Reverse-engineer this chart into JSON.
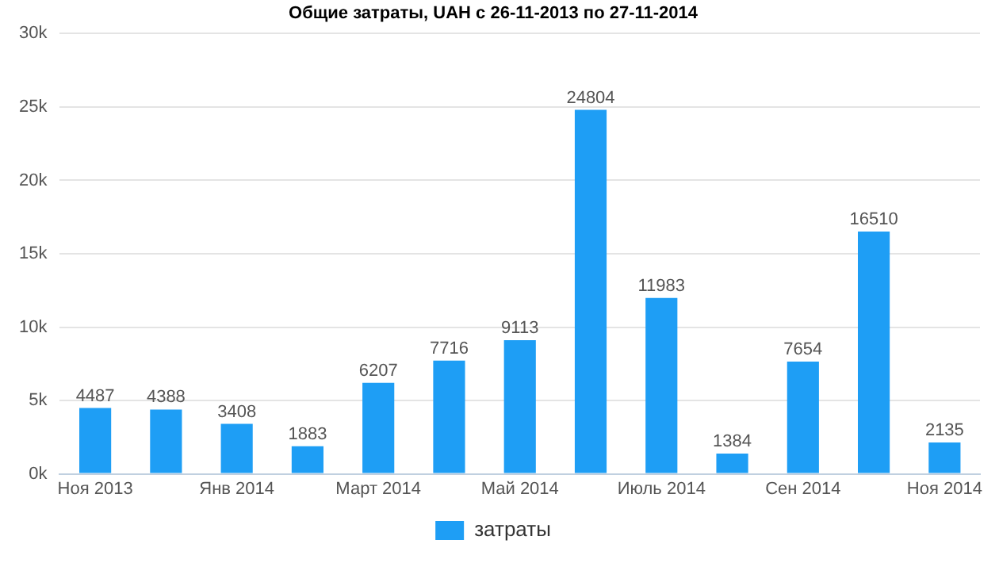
{
  "chart_data": {
    "type": "bar",
    "title": "Общие затраты, UAH с 26-11-2013 по 27-11-2014",
    "categories": [
      "Ноя 2013",
      null,
      "Янв 2014",
      null,
      "Март 2014",
      null,
      "Май 2014",
      null,
      "Июль 2014",
      null,
      "Сен 2014",
      null,
      "Ноя 2014"
    ],
    "series": [
      {
        "name": "затраты",
        "color": "#1e9ef5",
        "values": [
          4487,
          4388,
          3408,
          1883,
          6207,
          7716,
          9113,
          24804,
          11983,
          1384,
          7654,
          16510,
          2135
        ]
      }
    ],
    "ylim": [
      0,
      30000
    ],
    "yticks": [
      {
        "value": 0,
        "label": "0k"
      },
      {
        "value": 5000,
        "label": "5k"
      },
      {
        "value": 10000,
        "label": "10k"
      },
      {
        "value": 15000,
        "label": "15k"
      },
      {
        "value": 20000,
        "label": "20k"
      },
      {
        "value": 25000,
        "label": "25k"
      },
      {
        "value": 30000,
        "label": "30k"
      }
    ],
    "grid": "y",
    "legend": "bottom",
    "data_labels": true
  }
}
